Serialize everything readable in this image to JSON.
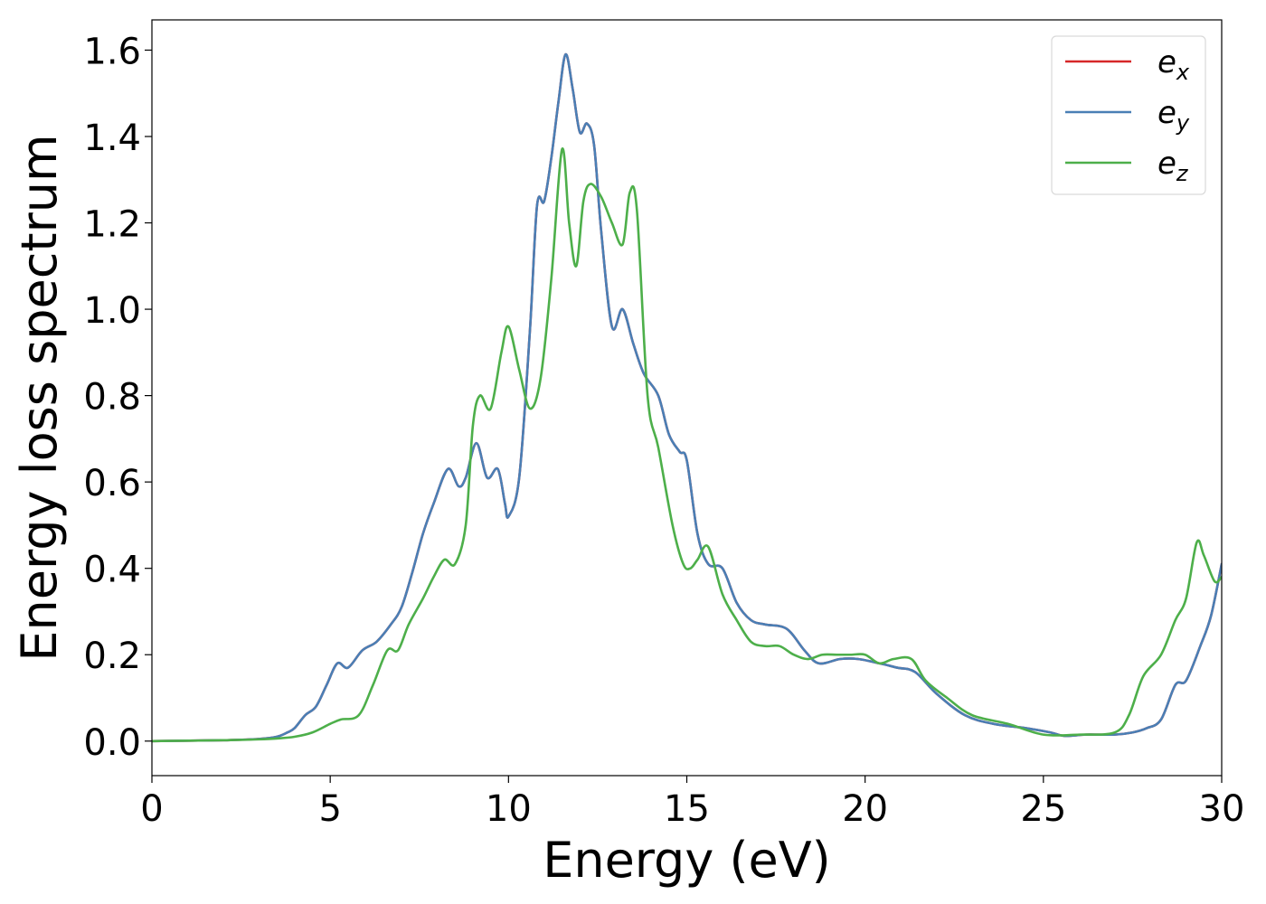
{
  "chart_data": {
    "type": "line",
    "xlabel": "Energy (eV)",
    "ylabel": "Energy loss spectrum",
    "xlim": [
      0,
      30
    ],
    "ylim": [
      -0.08,
      1.67
    ],
    "xticks": [
      0,
      5,
      10,
      15,
      20,
      25,
      30
    ],
    "yticks": [
      0.0,
      0.2,
      0.4,
      0.6,
      0.8,
      1.0,
      1.2,
      1.4,
      1.6
    ],
    "xtick_labels": [
      "0",
      "5",
      "10",
      "15",
      "20",
      "25",
      "30"
    ],
    "ytick_labels": [
      "0.0",
      "0.2",
      "0.4",
      "0.6",
      "0.8",
      "1.0",
      "1.2",
      "1.4",
      "1.6"
    ],
    "grid": false,
    "legend_position": "top-right",
    "series": [
      {
        "name": "e",
        "sub": "x",
        "color": "#d62728",
        "x": [
          0,
          2,
          3,
          3.5,
          3.8,
          4.0,
          4.3,
          4.6,
          4.9,
          5.2,
          5.5,
          5.9,
          6.3,
          6.7,
          7.0,
          7.3,
          7.6,
          7.9,
          8.3,
          8.6,
          8.8,
          9.1,
          9.4,
          9.7,
          9.9,
          10.0,
          10.3,
          10.6,
          10.8,
          11.0,
          11.2,
          11.4,
          11.6,
          11.8,
          12.0,
          12.2,
          12.4,
          12.6,
          12.9,
          13.2,
          13.5,
          13.8,
          14.2,
          14.5,
          14.8,
          15.0,
          15.3,
          15.6,
          16.0,
          16.4,
          16.8,
          17.2,
          17.8,
          18.3,
          18.7,
          19.3,
          19.8,
          20.4,
          20.9,
          21.4,
          22.0,
          22.8,
          23.6,
          24.5,
          25.2,
          25.6,
          26.2,
          27.0,
          27.5,
          27.9,
          28.3,
          28.7,
          29.0,
          29.4,
          29.7,
          30.0
        ],
        "y": [
          0.0,
          0.002,
          0.005,
          0.01,
          0.02,
          0.03,
          0.06,
          0.08,
          0.13,
          0.18,
          0.17,
          0.21,
          0.23,
          0.27,
          0.31,
          0.39,
          0.48,
          0.55,
          0.63,
          0.59,
          0.61,
          0.69,
          0.61,
          0.63,
          0.55,
          0.52,
          0.61,
          0.95,
          1.24,
          1.25,
          1.35,
          1.48,
          1.59,
          1.51,
          1.41,
          1.43,
          1.38,
          1.18,
          0.96,
          1.0,
          0.92,
          0.85,
          0.8,
          0.71,
          0.67,
          0.65,
          0.48,
          0.41,
          0.4,
          0.32,
          0.28,
          0.27,
          0.26,
          0.21,
          0.18,
          0.19,
          0.19,
          0.18,
          0.17,
          0.16,
          0.11,
          0.06,
          0.04,
          0.03,
          0.02,
          0.012,
          0.015,
          0.015,
          0.02,
          0.03,
          0.05,
          0.13,
          0.14,
          0.22,
          0.29,
          0.41
        ]
      },
      {
        "name": "e",
        "sub": "y",
        "color": "#4a7fb5",
        "x": [
          0,
          2,
          3,
          3.5,
          3.8,
          4.0,
          4.3,
          4.6,
          4.9,
          5.2,
          5.5,
          5.9,
          6.3,
          6.7,
          7.0,
          7.3,
          7.6,
          7.9,
          8.3,
          8.6,
          8.8,
          9.1,
          9.4,
          9.7,
          9.9,
          10.0,
          10.3,
          10.6,
          10.8,
          11.0,
          11.2,
          11.4,
          11.6,
          11.8,
          12.0,
          12.2,
          12.4,
          12.6,
          12.9,
          13.2,
          13.5,
          13.8,
          14.2,
          14.5,
          14.8,
          15.0,
          15.3,
          15.6,
          16.0,
          16.4,
          16.8,
          17.2,
          17.8,
          18.3,
          18.7,
          19.3,
          19.8,
          20.4,
          20.9,
          21.4,
          22.0,
          22.8,
          23.6,
          24.5,
          25.2,
          25.6,
          26.2,
          27.0,
          27.5,
          27.9,
          28.3,
          28.7,
          29.0,
          29.4,
          29.7,
          30.0
        ],
        "y": [
          0.0,
          0.002,
          0.005,
          0.01,
          0.02,
          0.03,
          0.06,
          0.08,
          0.13,
          0.18,
          0.17,
          0.21,
          0.23,
          0.27,
          0.31,
          0.39,
          0.48,
          0.55,
          0.63,
          0.59,
          0.61,
          0.69,
          0.61,
          0.63,
          0.55,
          0.52,
          0.61,
          0.95,
          1.24,
          1.25,
          1.35,
          1.48,
          1.59,
          1.51,
          1.41,
          1.43,
          1.38,
          1.18,
          0.96,
          1.0,
          0.92,
          0.85,
          0.8,
          0.71,
          0.67,
          0.65,
          0.48,
          0.41,
          0.4,
          0.32,
          0.28,
          0.27,
          0.26,
          0.21,
          0.18,
          0.19,
          0.19,
          0.18,
          0.17,
          0.16,
          0.11,
          0.06,
          0.04,
          0.03,
          0.02,
          0.012,
          0.015,
          0.015,
          0.02,
          0.03,
          0.05,
          0.13,
          0.14,
          0.22,
          0.29,
          0.41
        ]
      },
      {
        "name": "e",
        "sub": "z",
        "color": "#4daf4a",
        "x": [
          0,
          2,
          3,
          3.5,
          4.0,
          4.5,
          5.0,
          5.3,
          5.8,
          6.2,
          6.6,
          6.9,
          7.2,
          7.6,
          7.9,
          8.2,
          8.5,
          8.8,
          9.0,
          9.2,
          9.5,
          9.8,
          10.0,
          10.3,
          10.6,
          10.9,
          11.2,
          11.5,
          11.7,
          11.9,
          12.1,
          12.3,
          12.6,
          12.9,
          13.2,
          13.4,
          13.6,
          13.9,
          14.2,
          14.6,
          14.9,
          15.1,
          15.3,
          15.6,
          16.0,
          16.4,
          16.8,
          17.2,
          17.6,
          18.0,
          18.4,
          18.8,
          19.2,
          19.6,
          20.0,
          20.4,
          20.8,
          21.3,
          21.7,
          22.3,
          23.0,
          24.0,
          25.0,
          26.0,
          27.0,
          27.4,
          27.8,
          28.3,
          28.7,
          29.0,
          29.3,
          29.5,
          29.8,
          30.0
        ],
        "y": [
          0.0,
          0.002,
          0.004,
          0.006,
          0.01,
          0.02,
          0.04,
          0.05,
          0.06,
          0.13,
          0.21,
          0.21,
          0.27,
          0.33,
          0.38,
          0.42,
          0.41,
          0.5,
          0.73,
          0.8,
          0.77,
          0.9,
          0.96,
          0.86,
          0.77,
          0.84,
          1.07,
          1.37,
          1.2,
          1.1,
          1.25,
          1.29,
          1.26,
          1.2,
          1.15,
          1.27,
          1.23,
          0.8,
          0.68,
          0.5,
          0.41,
          0.4,
          0.42,
          0.45,
          0.34,
          0.28,
          0.23,
          0.22,
          0.22,
          0.2,
          0.19,
          0.2,
          0.2,
          0.2,
          0.2,
          0.18,
          0.19,
          0.19,
          0.14,
          0.1,
          0.06,
          0.04,
          0.015,
          0.015,
          0.02,
          0.06,
          0.15,
          0.2,
          0.28,
          0.33,
          0.46,
          0.43,
          0.37,
          0.38
        ]
      }
    ]
  }
}
